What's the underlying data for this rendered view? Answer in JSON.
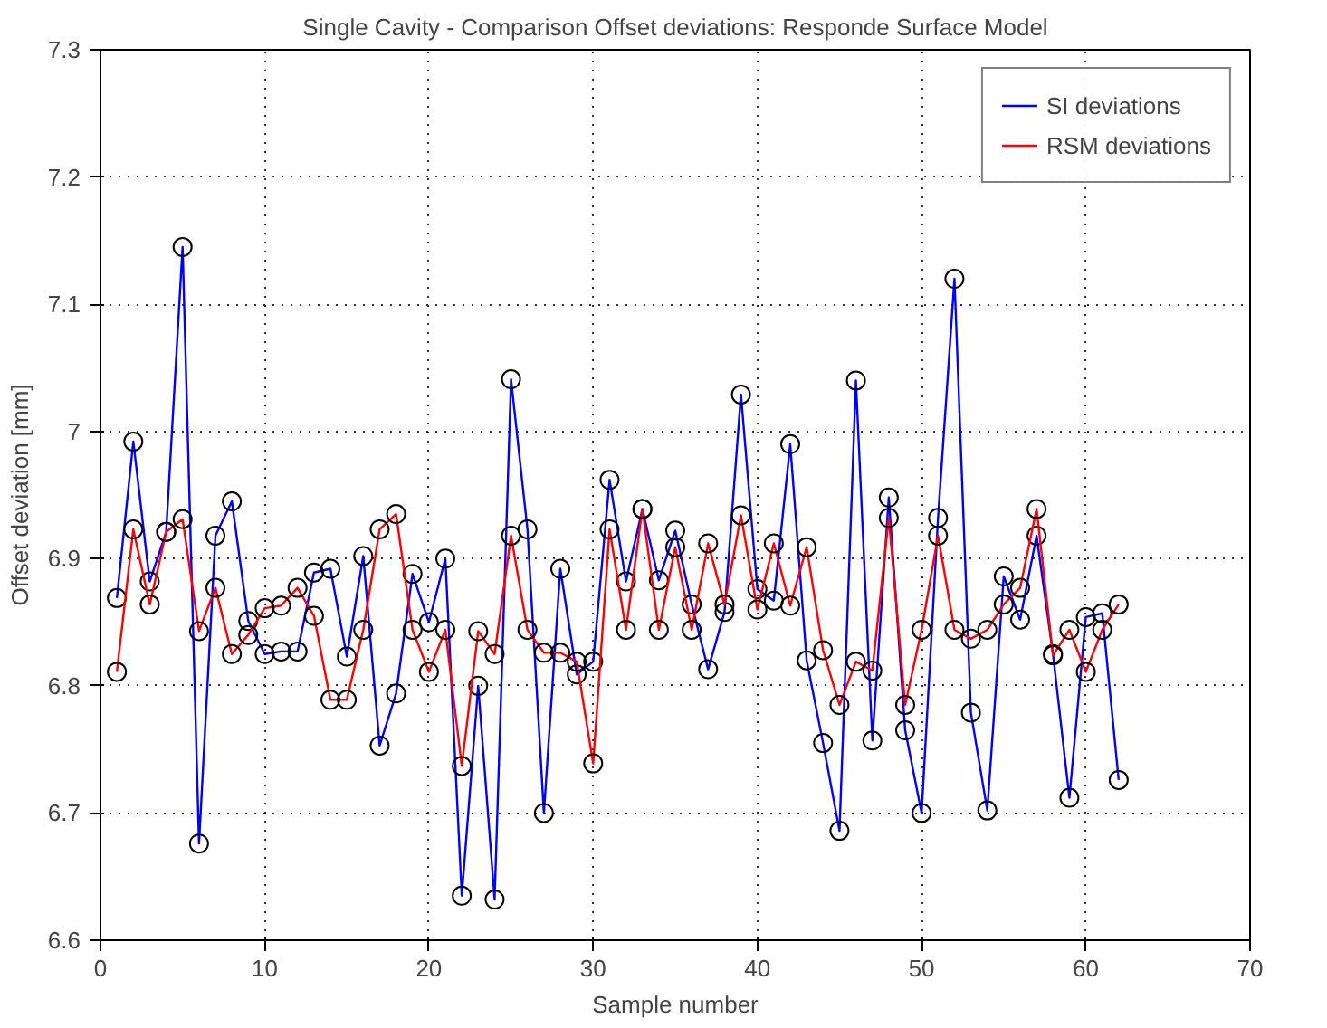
{
  "chart_data": {
    "type": "line",
    "title": "Single Cavity - Comparison Offset deviations: Responde Surface Model",
    "xlabel": "Sample number",
    "ylabel": "Offset deviation [mm]",
    "x": [
      1,
      2,
      3,
      4,
      5,
      6,
      7,
      8,
      9,
      10,
      11,
      12,
      13,
      14,
      15,
      16,
      17,
      18,
      19,
      20,
      21,
      22,
      23,
      24,
      25,
      26,
      27,
      28,
      29,
      30,
      31,
      32,
      33,
      34,
      35,
      36,
      37,
      38,
      39,
      40,
      41,
      42,
      43,
      44,
      45,
      46,
      47,
      48,
      49,
      50,
      51,
      52,
      53,
      54,
      55,
      56,
      57,
      58,
      59,
      60,
      61,
      62
    ],
    "series": [
      {
        "name": "SI deviations",
        "color": "#0000ff",
        "values": [
          6.869,
          6.992,
          6.882,
          6.921,
          7.145,
          6.676,
          6.918,
          6.945,
          6.851,
          6.825,
          6.827,
          6.827,
          6.889,
          6.892,
          6.823,
          6.902,
          6.753,
          6.794,
          6.888,
          6.85,
          6.9,
          6.635,
          6.8,
          6.632,
          7.041,
          6.923,
          6.7,
          6.892,
          6.809,
          6.819,
          6.962,
          6.882,
          6.939,
          6.883,
          6.922,
          6.864,
          6.813,
          6.858,
          7.029,
          6.876,
          6.867,
          6.99,
          6.82,
          6.755,
          6.686,
          7.04,
          6.757,
          6.948,
          6.765,
          6.7,
          6.932,
          7.12,
          6.779,
          6.702,
          6.886,
          6.852,
          6.918,
          6.825,
          6.712,
          6.854,
          6.857,
          6.726
        ]
      },
      {
        "name": "RSM deviations",
        "color": "#ff0000",
        "values": [
          6.811,
          6.923,
          6.864,
          6.921,
          6.931,
          6.843,
          6.877,
          6.825,
          6.84,
          6.861,
          6.863,
          6.877,
          6.855,
          6.789,
          6.789,
          6.844,
          6.923,
          6.935,
          6.844,
          6.811,
          6.844,
          6.737,
          6.843,
          6.825,
          6.918,
          6.844,
          6.826,
          6.826,
          6.819,
          6.739,
          6.923,
          6.844,
          6.939,
          6.844,
          6.909,
          6.844,
          6.912,
          6.864,
          6.934,
          6.86,
          6.912,
          6.863,
          6.909,
          6.828,
          6.785,
          6.819,
          6.812,
          6.932,
          6.785,
          6.844,
          6.918,
          6.844,
          6.837,
          6.844,
          6.864,
          6.877,
          6.939,
          6.824,
          6.844,
          6.811,
          6.844,
          6.864
        ]
      }
    ],
    "xlim": [
      0,
      70
    ],
    "xticks": [
      0,
      10,
      20,
      30,
      40,
      50,
      60,
      70
    ],
    "ylim": [
      6.6,
      7.3
    ],
    "yticks": [
      {
        "value": 6.6,
        "label": "6.6"
      },
      {
        "value": 6.7,
        "label": "6.7"
      },
      {
        "value": 6.8,
        "label": "6.8"
      },
      {
        "value": 6.9,
        "label": "6.9"
      },
      {
        "value": 7.0,
        "label": "7"
      },
      {
        "value": 7.1,
        "label": "7.1"
      },
      {
        "value": 7.2,
        "label": "7.2"
      },
      {
        "value": 7.3,
        "label": "7.3"
      }
    ],
    "grid": true,
    "legend": "top right",
    "marker": "circle",
    "line_style": "solid"
  }
}
